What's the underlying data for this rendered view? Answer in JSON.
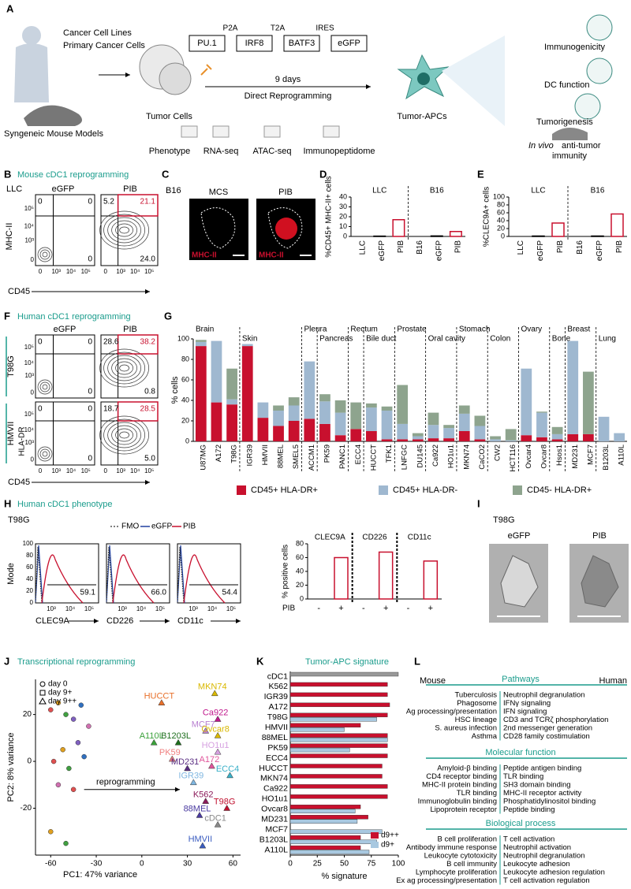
{
  "letters": [
    "A",
    "B",
    "C",
    "D",
    "E",
    "F",
    "G",
    "H",
    "I",
    "J",
    "K",
    "L"
  ],
  "panel_a": {
    "sources": [
      "Cancer Cell Lines",
      "Primary Cancer Cells"
    ],
    "models": "Syngeneic Mouse Models",
    "tumor_cells": "Tumor Cells",
    "construct": [
      "PU.1",
      "IRF8",
      "BATF3",
      "eGFP"
    ],
    "linkers": [
      "P2A",
      "T2A",
      "IRES"
    ],
    "duration": "9 days",
    "process": "Direct Reprogramming",
    "product": "Tumor-APCs",
    "assays": [
      "Phenotype",
      "RNA-seq",
      "ATAC-seq",
      "Immunopeptidome"
    ],
    "outcomes": [
      "Immunogenicity",
      "DC function",
      "Tumorigenesis"
    ],
    "in_vivo": "In vivo",
    "anti_tumor": "anti-tumor",
    "immunity": "immunity"
  },
  "panel_b": {
    "title": "Mouse cDC1 reprogramming",
    "cell_line": "LLC",
    "conditions": [
      "eGFP",
      "PIB"
    ],
    "y_axis": "MHC-II",
    "x_axis": "CD45",
    "ticks": [
      "0",
      "10³",
      "10⁴",
      "10⁵"
    ],
    "quadrants": [
      [
        "0",
        "0",
        "0"
      ],
      [
        "5.2",
        "21.1",
        "24.0"
      ]
    ]
  },
  "panel_c": {
    "cell_line": "B16",
    "conditions": [
      "MCS",
      "PIB"
    ],
    "stain": "MHC-II"
  },
  "panel_f": {
    "title": "Human cDC1 reprogramming",
    "conditions": [
      "eGFP",
      "PIB"
    ],
    "rows": [
      "T98G",
      "HMVII"
    ],
    "y_axis": "HLA-DR",
    "x_axis": "CD45",
    "ticks": [
      "0",
      "10³",
      "10⁴",
      "10⁵"
    ],
    "quadrants": [
      [
        [
          "0",
          "0",
          "0"
        ],
        [
          "28.6",
          "38.2",
          "0.8"
        ]
      ],
      [
        [
          "0",
          "0",
          "0"
        ],
        [
          "18.7",
          "28.5",
          "5.0"
        ]
      ]
    ]
  },
  "panel_h": {
    "title": "Human cDC1 phenotype",
    "cell_line": "T98G",
    "legend": [
      "FMO",
      "eGFP",
      "PIB"
    ],
    "y_axis": "Mode",
    "hist_yticks": [
      "0",
      "20",
      "40",
      "60",
      "80",
      "100"
    ],
    "hist_xticks": [
      "10³",
      "10⁴",
      "10⁵"
    ],
    "markers": [
      "CLEC9A",
      "CD226",
      "CD11c"
    ],
    "percents": [
      "59.1",
      "66.0",
      "54.4"
    ]
  },
  "panel_i": {
    "cell_line": "T98G",
    "conditions": [
      "eGFP",
      "PIB"
    ]
  },
  "panel_l": {
    "mouse": "Mouse",
    "human": "Human",
    "sections": [
      {
        "title": "Pathways",
        "mouse": [
          "Tuberculosis",
          "Phagosome",
          "Ag processing/presentation",
          "HSC lineage",
          "S. aureus infection",
          "Asthma"
        ],
        "human": [
          "Neutrophil degranulation",
          "IFNγ signaling",
          "IFN signaling",
          "CD3 and TCRζ phosphorylation",
          "2nd messenger generation",
          "CD28 family costimulation"
        ]
      },
      {
        "title": "Molecular function",
        "mouse": [
          "Amyloid-β binding",
          "CD4 receptor binding",
          "MHC-II protein binding",
          "TLR binding",
          "Immunoglobulin binding",
          "Lipoprotein receptor"
        ],
        "human": [
          "Peptide antigen binding",
          "TLR binding",
          "SH3 domain binding",
          "MHC-II receptor activity",
          "Phosphatidylinositol binding",
          "Peptide binding"
        ]
      },
      {
        "title": "Biological process",
        "mouse": [
          "B cell proliferation",
          "Antibody immune response",
          "Leukocyte cytotoxicity",
          "B cell immunity",
          "Lymphocyte proliferation",
          "Ex ag processing/presentation"
        ],
        "human": [
          "T cell activation",
          "Neutrophil activation",
          "Neutrophil degranulation",
          "Leukocyte adhesion",
          "Leukocyte adhesion regulation",
          "T cell activation regulation"
        ]
      }
    ]
  },
  "chart_data": [
    {
      "type": "bar",
      "ylabel": "%CD45+ MHC-II+ cells",
      "groups": [
        "LLC",
        "B16"
      ],
      "categories": [
        "LLC",
        "eGFP",
        "PIB",
        "B16",
        "eGFP",
        "PIB"
      ],
      "values": [
        0,
        0.3,
        17,
        0,
        0.5,
        5
      ],
      "ylim": [
        0,
        40
      ],
      "yticks": [
        0,
        10,
        20,
        30,
        40
      ],
      "color": "#c8102e"
    },
    {
      "type": "bar",
      "ylabel": "%CLEC9A+ cells",
      "groups": [
        "LLC",
        "B16"
      ],
      "categories": [
        "LLC",
        "eGFP",
        "PIB",
        "B16",
        "eGFP",
        "PIB"
      ],
      "values": [
        0,
        1,
        34,
        0,
        1,
        57
      ],
      "ylim": [
        0,
        100
      ],
      "yticks": [
        0,
        20,
        40,
        60,
        80,
        100
      ],
      "color": "#c8102e"
    },
    {
      "type": "stacked_bar",
      "ylabel": "% cells",
      "categories": [
        "U87MG",
        "A172",
        "T98G",
        "IGR39",
        "HMVII",
        "88MEL",
        "SMEL5",
        "ACCM1",
        "PK59",
        "PANC1",
        "ECC4",
        "HUCCT",
        "TFK1",
        "LNFGC",
        "DU145",
        "Ca922",
        "HO1u1",
        "MKN74",
        "CaCO2",
        "CW2",
        "HCT116",
        "Ovcar4",
        "Ovcar8",
        "Hsos1",
        "MD231",
        "MCF7",
        "B1203L",
        "A110L"
      ],
      "tissues": [
        "Brain",
        "Skin",
        "Pleura",
        "Pancreas",
        "Rectum",
        "Bile duct",
        "Prostate",
        "Oral cavity",
        "Stomach",
        "Colon",
        "Ovary",
        "Bone",
        "Breast",
        "Lung"
      ],
      "series": [
        {
          "name": "CD45+ HLA-DR+",
          "color": "#c8102e",
          "values": [
            93,
            38,
            36,
            93,
            23,
            15,
            20,
            22,
            17,
            6,
            12,
            10,
            2,
            2,
            2,
            3,
            3,
            10,
            2,
            0,
            0,
            6,
            4,
            2,
            7,
            7,
            0,
            0
          ]
        },
        {
          "name": "CD45+ HLA-DR-",
          "color": "#9fb8d0",
          "values": [
            4,
            60,
            5,
            2,
            15,
            15,
            15,
            56,
            22,
            22,
            0,
            23,
            28,
            15,
            3,
            13,
            10,
            17,
            13,
            2,
            1,
            65,
            24,
            5,
            91,
            0,
            24,
            8
          ]
        },
        {
          "name": "CD45- HLA-DR+",
          "color": "#8ea48e",
          "values": [
            2,
            0,
            30,
            0,
            0,
            5,
            8,
            0,
            7,
            12,
            26,
            4,
            4,
            38,
            3,
            12,
            3,
            8,
            10,
            3,
            11,
            0,
            1,
            7,
            0,
            61,
            0,
            0
          ]
        }
      ],
      "ylim": [
        0,
        100
      ],
      "yticks": [
        0,
        20,
        40,
        60,
        80,
        100
      ]
    },
    {
      "type": "bar",
      "ylabel": "% positive cells",
      "xlabel": "PIB",
      "groups": [
        "CLEC9A",
        "CD226",
        "CD11c"
      ],
      "categories": [
        "-",
        "+",
        "-",
        "+",
        "-",
        "+"
      ],
      "values": [
        0,
        60,
        0,
        68,
        0,
        55
      ],
      "ylim": [
        0,
        80
      ],
      "yticks": [
        0,
        20,
        40,
        60,
        80
      ],
      "color": "#c8102e"
    },
    {
      "type": "scatter",
      "title": "Transcriptional reprogramming",
      "xlabel": "PC1: 47% variance",
      "ylabel": "PC2: 8% variance",
      "xlim": [
        -70,
        65
      ],
      "ylim": [
        -40,
        35
      ],
      "xticks": [
        -60,
        -30,
        0,
        30,
        60
      ],
      "yticks": [
        -20,
        0,
        20
      ],
      "legend": [
        "day 0",
        "day 9+",
        "day 9++"
      ],
      "annotation": "reprogramming",
      "day0": {
        "x": [
          -60,
          -55,
          -50,
          -45,
          -40,
          -35,
          -58,
          -52,
          -48,
          -42,
          -38,
          -55,
          -45,
          -60,
          -50
        ],
        "y": [
          22,
          25,
          20,
          18,
          24,
          15,
          0,
          5,
          -3,
          8,
          2,
          -10,
          -12,
          -30,
          -35
        ]
      },
      "points": [
        {
          "label": "HUCCT",
          "x": 13,
          "y": 25,
          "color": "#e8702a"
        },
        {
          "label": "MKN74",
          "x": 48,
          "y": 29,
          "color": "#d9b800"
        },
        {
          "label": "Ca922",
          "x": 50,
          "y": 18,
          "color": "#c0188c"
        },
        {
          "label": "MCF7",
          "x": 42,
          "y": 13,
          "color": "#b87fd0"
        },
        {
          "label": "Ovcar8",
          "x": 50,
          "y": 11,
          "color": "#d9b800"
        },
        {
          "label": "A110L",
          "x": 8,
          "y": 8,
          "color": "#3aa13a"
        },
        {
          "label": "B1203L",
          "x": 24,
          "y": 8,
          "color": "#1e6e1e"
        },
        {
          "label": "HO1u1",
          "x": 50,
          "y": 4,
          "color": "#d6a0e0"
        },
        {
          "label": "PK59",
          "x": 20,
          "y": 1,
          "color": "#f08080"
        },
        {
          "label": "MD231",
          "x": 30,
          "y": -3,
          "color": "#5a2d82"
        },
        {
          "label": "A172",
          "x": 46,
          "y": -2,
          "color": "#e0559a"
        },
        {
          "label": "IGR39",
          "x": 34,
          "y": -9,
          "color": "#7fb6e0"
        },
        {
          "label": "ECC4",
          "x": 58,
          "y": -6,
          "color": "#3ab0c8"
        },
        {
          "label": "K562",
          "x": 42,
          "y": -17,
          "color": "#8b1a5a"
        },
        {
          "label": "T98G",
          "x": 56,
          "y": -20,
          "color": "#c0102e"
        },
        {
          "label": "88MEL",
          "x": 38,
          "y": -23,
          "color": "#4a3aa0"
        },
        {
          "label": "cDC1",
          "x": 50,
          "y": -27,
          "color": "#888888"
        },
        {
          "label": "HMVII",
          "x": 40,
          "y": -36,
          "color": "#3a5cc0"
        }
      ]
    },
    {
      "type": "hbar",
      "title": "Tumor-APC signature",
      "xlabel": "% signature",
      "categories": [
        "cDC1",
        "K562",
        "IGR39",
        "A172",
        "T98G",
        "HMVII",
        "88MEL",
        "PK59",
        "ECC4",
        "HUCCT",
        "MKN74",
        "Ca922",
        "HO1u1",
        "Ovcar8",
        "MD231",
        "MCF7",
        "B1203L",
        "A110L"
      ],
      "series": [
        {
          "name": "d9++",
          "color": "#c8102e",
          "colors": [
            "#999999",
            "#c8102e",
            "#c8102e",
            "#c8102e",
            "#c8102e",
            "#c8102e",
            "#c8102e",
            "#c8102e",
            "#c8102e",
            "#c8102e",
            "#c8102e",
            "#c8102e",
            "#c8102e",
            "#c8102e",
            "#c8102e",
            "#c8102e",
            "#c8102e",
            "#c8102e"
          ],
          "values": [
            100,
            90,
            90,
            92,
            90,
            65,
            90,
            90,
            90,
            85,
            85,
            90,
            90,
            65,
            72,
            null,
            65,
            65
          ]
        },
        {
          "name": "d9+",
          "color": "#a8c8e0",
          "values": [
            null,
            null,
            null,
            null,
            80,
            50,
            90,
            55,
            null,
            null,
            null,
            null,
            null,
            60,
            62,
            85,
            80,
            73
          ]
        }
      ],
      "xlim": [
        0,
        100
      ],
      "xticks": [
        0,
        25,
        50,
        75,
        100
      ]
    }
  ]
}
